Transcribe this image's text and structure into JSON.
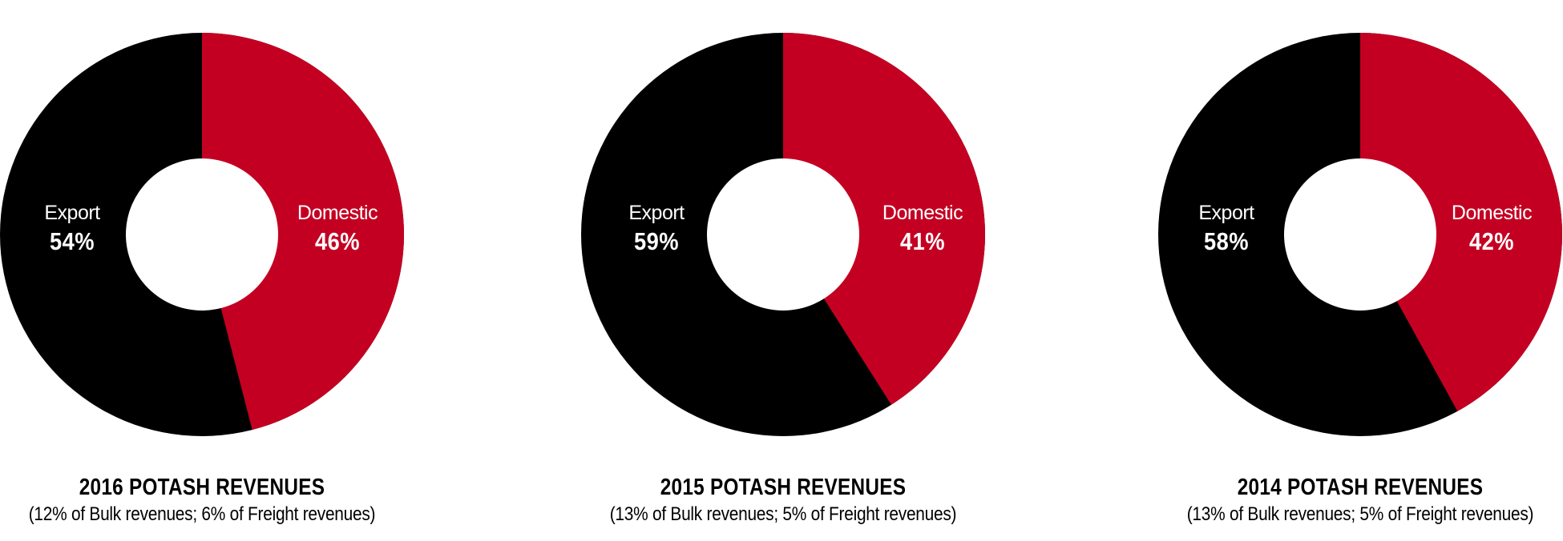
{
  "colors": {
    "domestic": "#C40022",
    "export": "#000000",
    "hole": "#FFFFFF",
    "label_text": "#FFFFFF",
    "caption_text": "#000000"
  },
  "charts": [
    {
      "title": "2016 POTASH REVENUES",
      "subtitle": "(12% of Bulk revenues; 6% of Freight revenues)",
      "export": {
        "label": "Export",
        "value_label": "54%",
        "value": 54
      },
      "domestic": {
        "label": "Domestic",
        "value_label": "46%",
        "value": 46
      }
    },
    {
      "title": "2015 POTASH REVENUES",
      "subtitle": "(13% of Bulk revenues; 5% of Freight revenues)",
      "export": {
        "label": "Export",
        "value_label": "59%",
        "value": 59
      },
      "domestic": {
        "label": "Domestic",
        "value_label": "41%",
        "value": 41
      }
    },
    {
      "title": "2014 POTASH REVENUES",
      "subtitle": "(13% of Bulk revenues; 5% of Freight revenues)",
      "export": {
        "label": "Export",
        "value_label": "58%",
        "value": 58
      },
      "domestic": {
        "label": "Domestic",
        "value_label": "42%",
        "value": 42
      }
    }
  ],
  "chart_data": [
    {
      "type": "pie",
      "variant": "donut",
      "title": "2016 POTASH REVENUES",
      "subtitle": "(12% of Bulk revenues; 6% of Freight revenues)",
      "categories": [
        "Domestic",
        "Export"
      ],
      "values": [
        46,
        54
      ],
      "unit": "%",
      "colors": [
        "#C40022",
        "#000000"
      ],
      "start_angle": "12 o'clock, clockwise"
    },
    {
      "type": "pie",
      "variant": "donut",
      "title": "2015 POTASH REVENUES",
      "subtitle": "(13% of Bulk revenues; 5% of Freight revenues)",
      "categories": [
        "Domestic",
        "Export"
      ],
      "values": [
        41,
        59
      ],
      "unit": "%",
      "colors": [
        "#C40022",
        "#000000"
      ],
      "start_angle": "12 o'clock, clockwise"
    },
    {
      "type": "pie",
      "variant": "donut",
      "title": "2014 POTASH REVENUES",
      "subtitle": "(13% of Bulk revenues; 5% of Freight revenues)",
      "categories": [
        "Domestic",
        "Export"
      ],
      "values": [
        42,
        58
      ],
      "unit": "%",
      "colors": [
        "#C40022",
        "#000000"
      ],
      "start_angle": "12 o'clock, clockwise"
    }
  ]
}
